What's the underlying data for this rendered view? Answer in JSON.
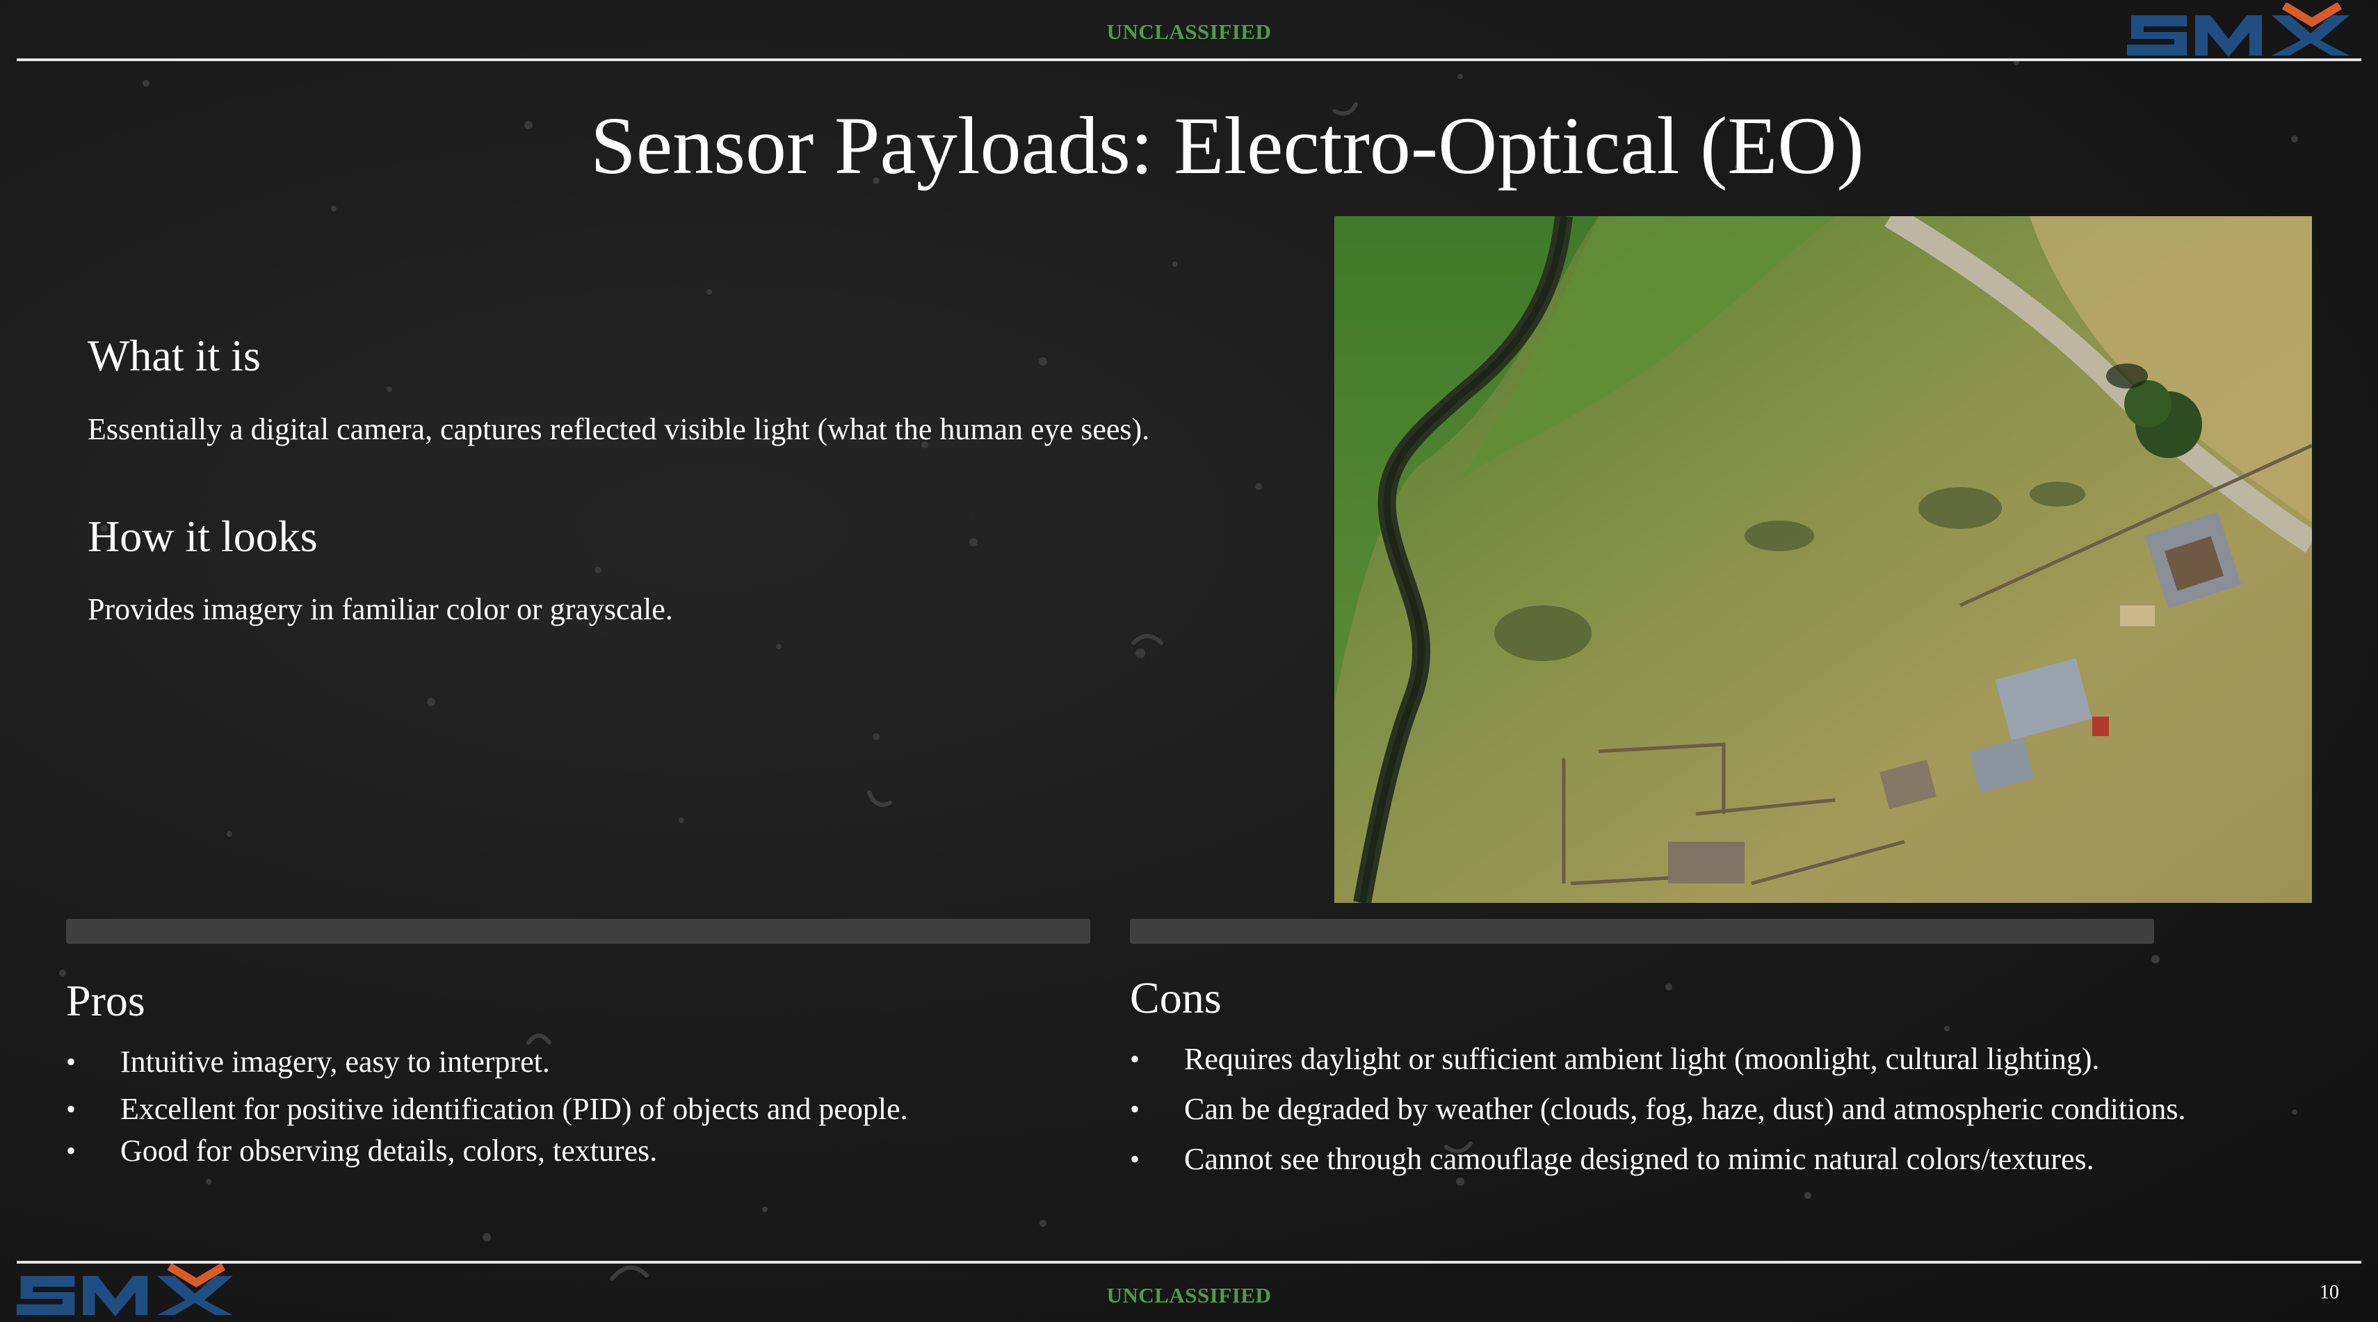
{
  "classification": {
    "top": "UNCLASSIFIED",
    "bottom": "UNCLASSIFIED"
  },
  "logo": {
    "text": "SMX",
    "colors": {
      "letters": "#1f4e82",
      "accent": "#d95b2a"
    }
  },
  "title": "Sensor Payloads: Electro-Optical (EO)",
  "what_it_is": {
    "heading": "What it is",
    "text": "Essentially a digital camera, captures reflected visible light (what the human eye sees)."
  },
  "how_it_looks": {
    "heading": "How it looks",
    "text": "Provides imagery in familiar color or grayscale."
  },
  "image": {
    "description_icon": "aerial-farm-photo"
  },
  "pros": {
    "heading": "Pros",
    "items": [
      "Intuitive imagery, easy to interpret.",
      "Excellent for positive identification (PID) of objects and people.",
      "Good for observing details, colors, textures."
    ]
  },
  "cons": {
    "heading": "Cons",
    "items": [
      "Requires daylight or sufficient ambient light (moonlight, cultural lighting).",
      "Can be degraded by weather (clouds, fog, haze, dust) and atmospheric conditions.",
      "Cannot see through camouflage designed to mimic natural colors/textures."
    ]
  },
  "page_number": "10",
  "colors": {
    "background": "#1b1b1b",
    "classification": "#4f9c4a",
    "text": "#ffffff",
    "bar": "#3f3f3f"
  }
}
